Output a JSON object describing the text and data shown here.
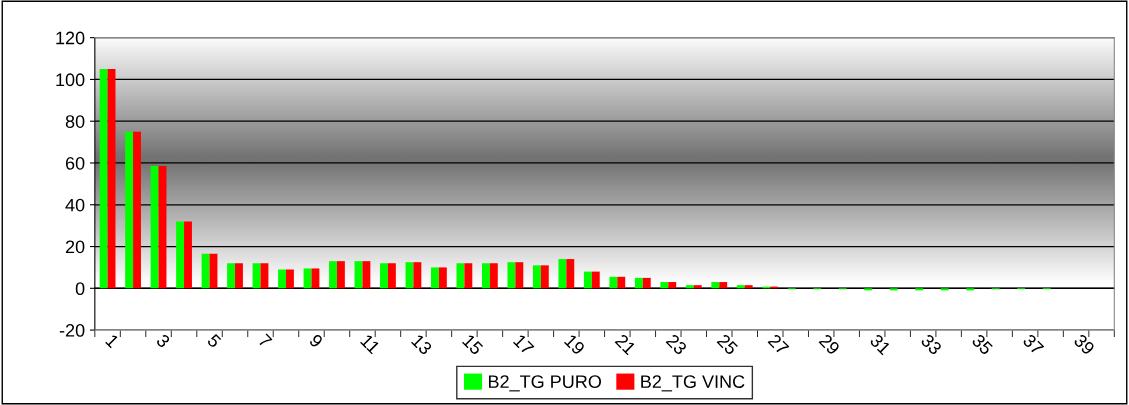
{
  "chart_data": {
    "type": "bar",
    "categories": [
      "1",
      null,
      "3",
      null,
      "5",
      null,
      "7",
      null,
      "9",
      null,
      "11",
      null,
      "13",
      null,
      "15",
      null,
      "17",
      null,
      "19",
      null,
      "21",
      null,
      "23",
      null,
      "25",
      null,
      "27",
      null,
      "29",
      null,
      "31",
      null,
      "33",
      null,
      "35",
      null,
      "37",
      null,
      "39",
      null
    ],
    "series": [
      {
        "name": "B2_TG PURO",
        "color": "#00ff00",
        "values": [
          105,
          75,
          58.5,
          32,
          16.5,
          12,
          12,
          9,
          9.5,
          13,
          13,
          12,
          12.5,
          10,
          12,
          12,
          12.5,
          11,
          14,
          8,
          5.5,
          5,
          3,
          1.5,
          3,
          1.5,
          0.8,
          -0.5,
          -0.5,
          -0.5,
          -1,
          -1,
          -1,
          -1,
          -1,
          -0.5,
          -0.5,
          -0.5,
          null,
          null
        ]
      },
      {
        "name": "B2_TG VINC",
        "color": "#ff0000",
        "values": [
          105,
          75,
          58.5,
          32,
          16.5,
          12,
          12,
          9,
          9.5,
          13,
          13,
          12,
          12.5,
          10,
          12,
          12,
          12.5,
          11,
          14,
          8,
          5.5,
          5,
          3,
          1.5,
          3,
          1.5,
          0.8,
          0,
          0,
          0,
          0,
          0,
          0,
          0,
          0,
          0,
          0,
          0,
          null,
          null
        ]
      }
    ],
    "ylim": [
      -20,
      120
    ],
    "yticks": [
      -20,
      0,
      20,
      40,
      60,
      80,
      100,
      120
    ],
    "grid": "y",
    "legend": "bottom"
  }
}
